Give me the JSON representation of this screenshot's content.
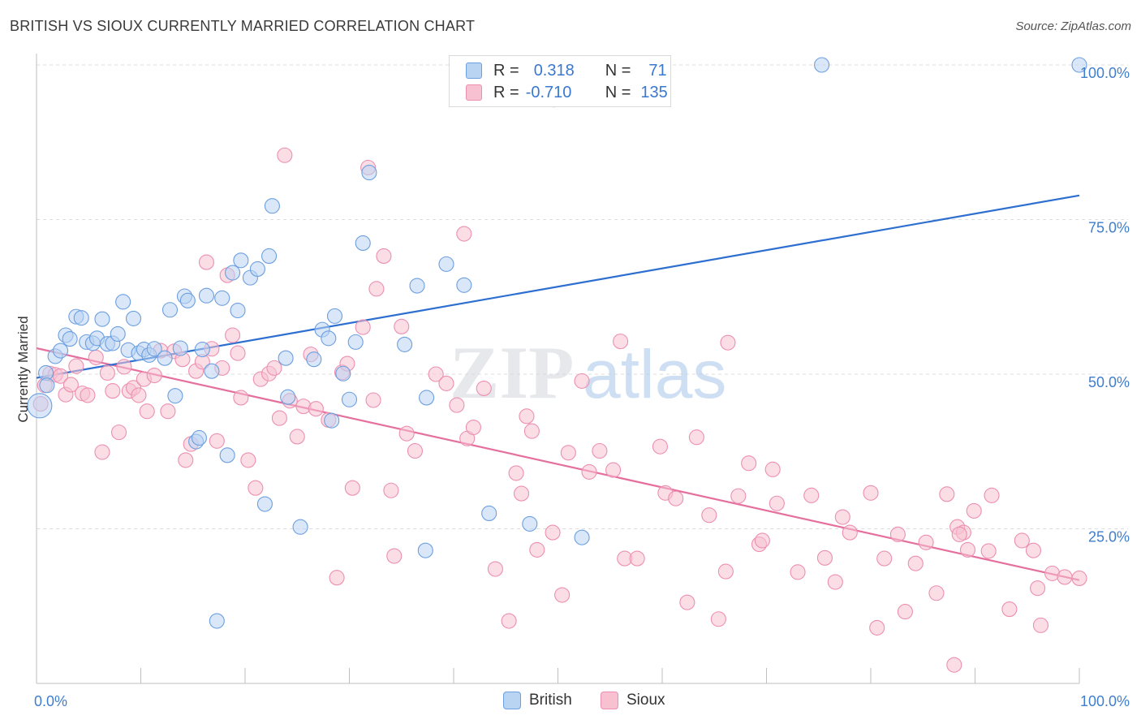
{
  "title": "BRITISH VS SIOUX CURRENTLY MARRIED CORRELATION CHART",
  "source": "Source: ZipAtlas.com",
  "watermark": {
    "zip": "ZIP",
    "atlas": "atlas"
  },
  "legend": {
    "rows": [
      {
        "r_label": "R =",
        "r_value": "0.318",
        "n_label": "N =",
        "n_value": "71"
      },
      {
        "r_label": "R =",
        "r_value": "-0.710",
        "n_label": "N =",
        "n_value": "135"
      }
    ]
  },
  "bottom_legend": {
    "british": "British",
    "sioux": "Sioux"
  },
  "colors": {
    "british_fill": "#b9d3f2",
    "british_stroke": "#6c9fe0",
    "british_line": "#2d6fd0",
    "sioux_fill": "#f7c1d2",
    "sioux_stroke": "#ec8fb0",
    "sioux_line": "#e56f9d",
    "axis_text": "#3f7ecc",
    "grid": "#dddddd"
  },
  "chart_data": {
    "type": "scatter",
    "xlabel": "",
    "ylabel": "Currently Married",
    "xlim": [
      0,
      100
    ],
    "ylim": [
      0,
      100
    ],
    "x_tick_labels": [
      "0.0%",
      "100.0%"
    ],
    "y_tick_labels": [
      {
        "value": 25,
        "label": "25.0%"
      },
      {
        "value": 50,
        "label": "50.0%"
      },
      {
        "value": 75,
        "label": "75.0%"
      },
      {
        "value": 100,
        "label": "100.0%"
      }
    ],
    "grid": true,
    "series": [
      {
        "name": "British",
        "trend": {
          "x0": 0,
          "y0": 49.4,
          "x1": 100,
          "y1": 78.9
        },
        "points": [
          [
            0.3,
            44.9
          ],
          [
            0.9,
            50.2
          ],
          [
            1.8,
            52.9
          ],
          [
            2.3,
            53.8
          ],
          [
            2.8,
            56.3
          ],
          [
            3.2,
            55.7
          ],
          [
            3.8,
            59.3
          ],
          [
            4.3,
            59.1
          ],
          [
            4.8,
            55.2
          ],
          [
            5.4,
            55.0
          ],
          [
            5.8,
            55.8
          ],
          [
            6.3,
            58.9
          ],
          [
            6.8,
            54.9
          ],
          [
            7.3,
            55.0
          ],
          [
            7.8,
            56.5
          ],
          [
            8.3,
            61.7
          ],
          [
            8.8,
            53.9
          ],
          [
            9.3,
            59.0
          ],
          [
            9.8,
            53.4
          ],
          [
            10.3,
            54.0
          ],
          [
            10.8,
            53.1
          ],
          [
            11.3,
            54.1
          ],
          [
            12.3,
            52.6
          ],
          [
            12.8,
            60.4
          ],
          [
            13.3,
            46.5
          ],
          [
            13.8,
            54.2
          ],
          [
            14.2,
            62.6
          ],
          [
            14.5,
            61.9
          ],
          [
            15.3,
            39.1
          ],
          [
            15.6,
            39.7
          ],
          [
            15.9,
            54.0
          ],
          [
            16.3,
            62.7
          ],
          [
            16.8,
            50.5
          ],
          [
            17.3,
            10.1
          ],
          [
            17.8,
            62.3
          ],
          [
            18.3,
            36.9
          ],
          [
            18.8,
            66.4
          ],
          [
            19.3,
            60.3
          ],
          [
            19.6,
            68.4
          ],
          [
            20.5,
            65.6
          ],
          [
            21.2,
            67.0
          ],
          [
            21.9,
            29.0
          ],
          [
            22.3,
            69.1
          ],
          [
            22.6,
            77.2
          ],
          [
            23.9,
            52.6
          ],
          [
            24.1,
            46.3
          ],
          [
            25.3,
            25.3
          ],
          [
            26.6,
            52.4
          ],
          [
            27.4,
            57.2
          ],
          [
            28.0,
            55.8
          ],
          [
            28.3,
            42.5
          ],
          [
            28.6,
            59.4
          ],
          [
            29.4,
            50.1
          ],
          [
            30.0,
            45.9
          ],
          [
            30.6,
            55.2
          ],
          [
            31.3,
            71.2
          ],
          [
            31.9,
            82.6
          ],
          [
            35.3,
            54.8
          ],
          [
            36.5,
            64.3
          ],
          [
            37.3,
            21.5
          ],
          [
            37.4,
            46.2
          ],
          [
            39.3,
            67.8
          ],
          [
            41.0,
            64.4
          ],
          [
            43.4,
            27.5
          ],
          [
            47.3,
            25.8
          ],
          [
            49.6,
            94.4
          ],
          [
            49.8,
            100.0
          ],
          [
            52.3,
            23.6
          ],
          [
            75.3,
            100.0
          ],
          [
            100.0,
            100.0
          ],
          [
            1.0,
            48.2
          ]
        ]
      },
      {
        "name": "Sioux",
        "trend": {
          "x0": 0,
          "y0": 54.2,
          "x1": 100,
          "y1": 16.7
        },
        "points": [
          [
            0.4,
            45.2
          ],
          [
            0.8,
            48.2
          ],
          [
            1.3,
            50.1
          ],
          [
            1.8,
            49.9
          ],
          [
            2.3,
            49.7
          ],
          [
            2.8,
            46.7
          ],
          [
            3.3,
            48.3
          ],
          [
            3.8,
            51.3
          ],
          [
            4.4,
            46.9
          ],
          [
            4.9,
            46.6
          ],
          [
            5.7,
            52.7
          ],
          [
            6.3,
            37.4
          ],
          [
            6.8,
            50.2
          ],
          [
            7.3,
            47.3
          ],
          [
            7.9,
            40.6
          ],
          [
            8.4,
            51.2
          ],
          [
            8.9,
            47.3
          ],
          [
            9.3,
            47.8
          ],
          [
            9.8,
            46.6
          ],
          [
            10.3,
            49.2
          ],
          [
            10.6,
            44.0
          ],
          [
            11.3,
            49.8
          ],
          [
            11.9,
            53.8
          ],
          [
            12.6,
            44.0
          ],
          [
            13.2,
            53.7
          ],
          [
            14.0,
            52.4
          ],
          [
            14.3,
            36.1
          ],
          [
            14.8,
            38.7
          ],
          [
            15.3,
            50.5
          ],
          [
            15.9,
            52.0
          ],
          [
            16.3,
            68.1
          ],
          [
            16.8,
            54.1
          ],
          [
            17.3,
            39.2
          ],
          [
            17.8,
            51.0
          ],
          [
            18.3,
            66.0
          ],
          [
            18.8,
            56.3
          ],
          [
            19.3,
            53.4
          ],
          [
            19.6,
            46.2
          ],
          [
            20.3,
            36.1
          ],
          [
            21.0,
            31.6
          ],
          [
            21.5,
            49.2
          ],
          [
            22.3,
            50.1
          ],
          [
            22.8,
            51.0
          ],
          [
            23.3,
            42.9
          ],
          [
            23.8,
            85.4
          ],
          [
            24.3,
            45.7
          ],
          [
            25.0,
            39.9
          ],
          [
            25.6,
            44.8
          ],
          [
            26.3,
            53.2
          ],
          [
            26.8,
            44.4
          ],
          [
            28.0,
            42.6
          ],
          [
            28.8,
            17.1
          ],
          [
            29.3,
            50.3
          ],
          [
            29.8,
            51.7
          ],
          [
            30.3,
            31.6
          ],
          [
            31.3,
            57.6
          ],
          [
            31.8,
            83.4
          ],
          [
            32.3,
            45.8
          ],
          [
            32.6,
            63.8
          ],
          [
            33.3,
            69.1
          ],
          [
            34.0,
            31.2
          ],
          [
            34.3,
            20.6
          ],
          [
            35.0,
            57.7
          ],
          [
            35.5,
            40.4
          ],
          [
            36.3,
            37.6
          ],
          [
            38.3,
            50.0
          ],
          [
            39.3,
            48.5
          ],
          [
            40.3,
            45.0
          ],
          [
            41.0,
            72.7
          ],
          [
            41.3,
            39.6
          ],
          [
            41.9,
            41.4
          ],
          [
            42.9,
            47.7
          ],
          [
            44.0,
            18.5
          ],
          [
            45.3,
            10.1
          ],
          [
            46.0,
            34.0
          ],
          [
            46.5,
            30.7
          ],
          [
            47.0,
            43.2
          ],
          [
            47.5,
            40.8
          ],
          [
            48.0,
            21.6
          ],
          [
            49.5,
            24.4
          ],
          [
            50.4,
            14.3
          ],
          [
            51.0,
            37.3
          ],
          [
            52.3,
            48.9
          ],
          [
            53.0,
            34.2
          ],
          [
            54.0,
            37.6
          ],
          [
            55.3,
            34.5
          ],
          [
            56.0,
            55.3
          ],
          [
            56.4,
            20.2
          ],
          [
            57.6,
            20.2
          ],
          [
            59.8,
            38.3
          ],
          [
            60.3,
            30.8
          ],
          [
            61.3,
            29.9
          ],
          [
            62.4,
            13.1
          ],
          [
            63.3,
            39.8
          ],
          [
            64.5,
            27.2
          ],
          [
            65.4,
            10.4
          ],
          [
            66.1,
            18.1
          ],
          [
            66.3,
            55.1
          ],
          [
            67.3,
            30.3
          ],
          [
            68.3,
            35.6
          ],
          [
            69.3,
            22.5
          ],
          [
            69.6,
            23.1
          ],
          [
            70.6,
            34.6
          ],
          [
            71.0,
            29.1
          ],
          [
            73.0,
            18.0
          ],
          [
            74.3,
            30.4
          ],
          [
            75.6,
            20.3
          ],
          [
            76.6,
            16.4
          ],
          [
            77.3,
            26.9
          ],
          [
            78.0,
            24.4
          ],
          [
            80.0,
            30.8
          ],
          [
            80.6,
            9.0
          ],
          [
            81.3,
            20.2
          ],
          [
            82.6,
            24.1
          ],
          [
            83.3,
            11.6
          ],
          [
            84.3,
            19.4
          ],
          [
            85.3,
            22.8
          ],
          [
            86.3,
            14.6
          ],
          [
            87.3,
            30.6
          ],
          [
            88.3,
            25.3
          ],
          [
            88.9,
            24.4
          ],
          [
            89.3,
            21.6
          ],
          [
            89.9,
            27.9
          ],
          [
            91.3,
            21.4
          ],
          [
            91.6,
            30.4
          ],
          [
            93.3,
            12.0
          ],
          [
            94.5,
            23.1
          ],
          [
            95.6,
            21.5
          ],
          [
            96.0,
            15.4
          ],
          [
            96.3,
            9.4
          ],
          [
            97.4,
            17.8
          ],
          [
            98.6,
            17.2
          ],
          [
            100.0,
            17.0
          ],
          [
            88.0,
            3.0
          ],
          [
            88.5,
            24.1
          ]
        ]
      }
    ]
  }
}
